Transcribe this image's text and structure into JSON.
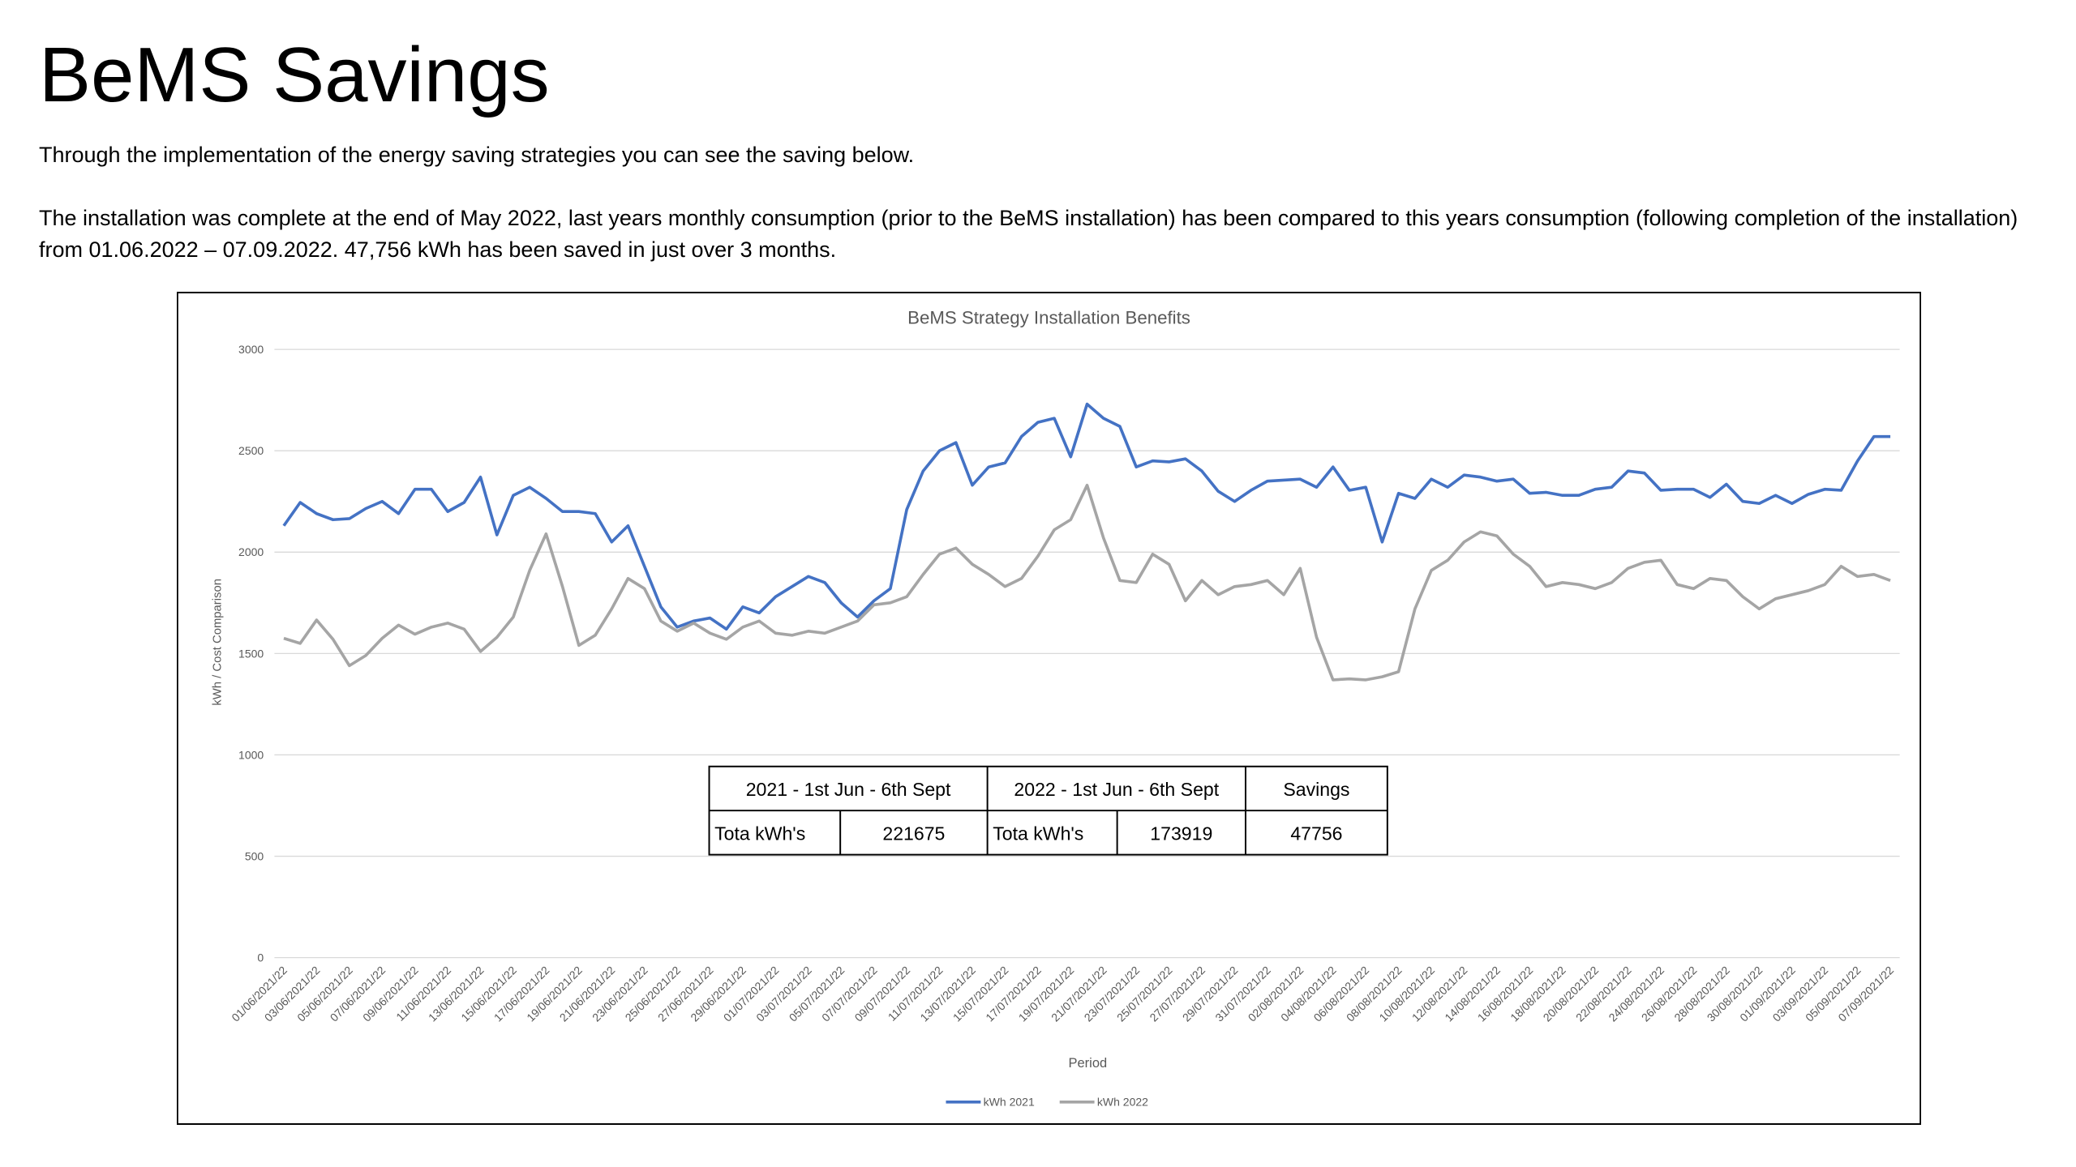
{
  "header": {
    "title": "BeMS Savings"
  },
  "paragraphs": [
    "Through the implementation of the energy saving strategies you can see the saving below.",
    "The installation was complete at the end of May 2022, last years monthly consumption (prior to the BeMS installation) has been compared to this years consumption (following completion of the installation) from 01.06.2022 – 07.09.2022. 47,756 kWh has been saved in just over 3 months."
  ],
  "chart_data": {
    "type": "line",
    "title": "BeMS Strategy Installation Benefits",
    "x_label": "Period",
    "y_label": "kWh / Cost Comparison",
    "ylim": [
      0,
      3000
    ],
    "yticks": [
      0,
      500,
      1000,
      1500,
      2000,
      2500,
      3000
    ],
    "grid": true,
    "legend": "bottom",
    "categories": [
      "01/06/2021/22",
      null,
      "03/06/2021/22",
      null,
      "05/06/2021/22",
      null,
      "07/06/2021/22",
      null,
      "09/06/2021/22",
      null,
      "11/06/2021/22",
      null,
      "13/06/2021/22",
      null,
      "15/06/2021/22",
      null,
      "17/06/2021/22",
      null,
      "19/06/2021/22",
      null,
      "21/06/2021/22",
      null,
      "23/06/2021/22",
      null,
      "25/06/2021/22",
      null,
      "27/06/2021/22",
      null,
      "29/06/2021/22",
      null,
      "01/07/2021/22",
      null,
      "03/07/2021/22",
      null,
      "05/07/2021/22",
      null,
      "07/07/2021/22",
      null,
      "09/07/2021/22",
      null,
      "11/07/2021/22",
      null,
      "13/07/2021/22",
      null,
      "15/07/2021/22",
      null,
      "17/07/2021/22",
      null,
      "19/07/2021/22",
      null,
      "21/07/2021/22",
      null,
      "23/07/2021/22",
      null,
      "25/07/2021/22",
      null,
      "27/07/2021/22",
      null,
      "29/07/2021/22",
      null,
      "31/07/2021/22",
      null,
      "02/08/2021/22",
      null,
      "04/08/2021/22",
      null,
      "06/08/2021/22",
      null,
      "08/08/2021/22",
      null,
      "10/08/2021/22",
      null,
      "12/08/2021/22",
      null,
      "14/08/2021/22",
      null,
      "16/08/2021/22",
      null,
      "18/08/2021/22",
      null,
      "20/08/2021/22",
      null,
      "22/08/2021/22",
      null,
      "24/08/2021/22",
      null,
      "26/08/2021/22",
      null,
      "28/08/2021/22",
      null,
      "30/08/2021/22",
      null,
      "01/09/2021/22",
      null,
      "03/09/2021/22",
      null,
      "05/09/2021/22",
      null,
      "07/09/2021/22"
    ],
    "series": [
      {
        "name": "kWh 2021",
        "color": "#4472c4",
        "values": [
          2130,
          2245,
          2190,
          2160,
          2165,
          2215,
          2250,
          2190,
          2310,
          2310,
          2200,
          2245,
          2370,
          2085,
          2280,
          2320,
          2265,
          2200,
          2200,
          2190,
          2050,
          2130,
          1930,
          1730,
          1630,
          1660,
          1675,
          1620,
          1730,
          1700,
          1780,
          1830,
          1880,
          1850,
          1750,
          1680,
          1760,
          1820,
          2210,
          2400,
          2500,
          2540,
          2330,
          2420,
          2440,
          2570,
          2640,
          2660,
          2470,
          2730,
          2660,
          2620,
          2420,
          2450,
          2445,
          2460,
          2400,
          2300,
          2250,
          2305,
          2350,
          2355,
          2360,
          2320,
          2420,
          2305,
          2320,
          2050,
          2290,
          2265,
          2360,
          2320,
          2380,
          2370,
          2350,
          2360,
          2290,
          2295,
          2280,
          2280,
          2310,
          2320,
          2400,
          2390,
          2305,
          2310,
          2310,
          2270,
          2335,
          2250,
          2240,
          2280,
          2240,
          2285,
          2310,
          2305,
          2450,
          2570,
          2570
        ]
      },
      {
        "name": "kWh 2022",
        "color": "#a5a5a5",
        "values": [
          1575,
          1550,
          1665,
          1570,
          1440,
          1490,
          1575,
          1640,
          1595,
          1630,
          1650,
          1620,
          1510,
          1580,
          1680,
          1910,
          2090,
          1830,
          1540,
          1590,
          1720,
          1870,
          1820,
          1660,
          1610,
          1650,
          1600,
          1570,
          1630,
          1660,
          1600,
          1590,
          1610,
          1600,
          1630,
          1660,
          1740,
          1750,
          1780,
          1890,
          1990,
          2020,
          1940,
          1890,
          1830,
          1870,
          1980,
          2110,
          2160,
          2330,
          2070,
          1860,
          1850,
          1990,
          1940,
          1760,
          1860,
          1790,
          1830,
          1840,
          1860,
          1790,
          1920,
          1580,
          1370,
          1375,
          1370,
          1385,
          1410,
          1720,
          1910,
          1960,
          2050,
          2100,
          2080,
          1990,
          1930,
          1830,
          1850,
          1840,
          1820,
          1850,
          1920,
          1950,
          1960,
          1840,
          1820,
          1870,
          1860,
          1780,
          1720,
          1770,
          1790,
          1810,
          1840,
          1930,
          1880,
          1890,
          1860
        ]
      }
    ]
  },
  "table": {
    "header": [
      "2021 - 1st Jun - 6th Sept",
      "2022 - 1st Jun - 6th Sept",
      "Savings"
    ],
    "rows": [
      [
        "Tota kWh's",
        221675,
        "Tota kWh's",
        173919,
        47756
      ]
    ]
  }
}
